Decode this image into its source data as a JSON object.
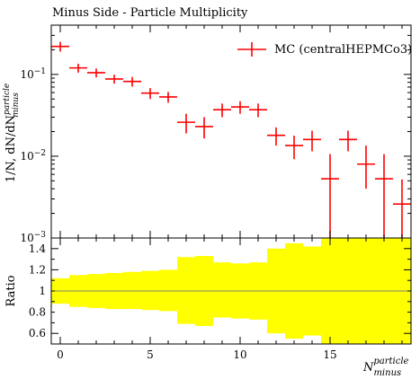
{
  "chart_data": {
    "type": "scatter",
    "title": "Minus Side - Particle Multiplicity",
    "xlabel": {
      "base": "N",
      "sup": "particle",
      "sub": "minus"
    },
    "ylabel": {
      "prefix": "1/N, dN/dN",
      "sup": "particle",
      "sub": "minus"
    },
    "ratio_label": "Ratio",
    "x_ticks": [
      "0",
      "5",
      "10",
      "15"
    ],
    "xlim": [
      -0.5,
      19.5
    ],
    "log_y": true,
    "ylim": [
      0.001,
      0.4
    ],
    "y_ticks": [
      {
        "mant": "10",
        "exp": "−1"
      },
      {
        "mant": "10",
        "exp": "−2"
      },
      {
        "mant": "10",
        "exp": "−3"
      }
    ],
    "legend": {
      "position": "top-right",
      "label": "MC (centralHEPMCo3)"
    },
    "series": [
      {
        "name": "MC (centralHEPMCo3)",
        "color": "#ff0000",
        "x": [
          0,
          1,
          2,
          3,
          4,
          5,
          6,
          7,
          8,
          9,
          10,
          11,
          12,
          13,
          14,
          15,
          16,
          17,
          18,
          19
        ],
        "y": [
          0.22,
          0.12,
          0.105,
          0.088,
          0.082,
          0.059,
          0.053,
          0.026,
          0.023,
          0.037,
          0.04,
          0.037,
          0.018,
          0.0135,
          0.016,
          0.0053,
          0.016,
          0.008,
          0.0053,
          0.0026
        ],
        "ylow": [
          0.19,
          0.105,
          0.092,
          0.077,
          0.071,
          0.05,
          0.045,
          0.019,
          0.0165,
          0.03,
          0.033,
          0.03,
          0.0135,
          0.0092,
          0.0115,
          0.001,
          0.0115,
          0.004,
          0.001,
          0.001
        ],
        "yhigh": [
          0.25,
          0.135,
          0.118,
          0.099,
          0.093,
          0.068,
          0.061,
          0.033,
          0.03,
          0.044,
          0.047,
          0.044,
          0.0225,
          0.0178,
          0.0205,
          0.0106,
          0.0205,
          0.0135,
          0.0106,
          0.0052
        ]
      }
    ],
    "ratio": {
      "ylim": [
        0.5,
        1.5
      ],
      "y_ticks": [
        "1.4",
        "1.2",
        "1",
        "0.8",
        "0.6"
      ],
      "reference_line": 1,
      "band_color": "#ffff00",
      "band_low": [
        0.88,
        0.85,
        0.84,
        0.83,
        0.83,
        0.82,
        0.81,
        0.69,
        0.67,
        0.75,
        0.74,
        0.73,
        0.6,
        0.55,
        0.58,
        0.45,
        0.45,
        0.45,
        0.45,
        0.45
      ],
      "band_high": [
        1.12,
        1.15,
        1.16,
        1.17,
        1.18,
        1.19,
        1.2,
        1.32,
        1.33,
        1.27,
        1.26,
        1.27,
        1.4,
        1.45,
        1.42,
        1.55,
        1.55,
        1.55,
        1.55,
        1.55
      ]
    }
  }
}
